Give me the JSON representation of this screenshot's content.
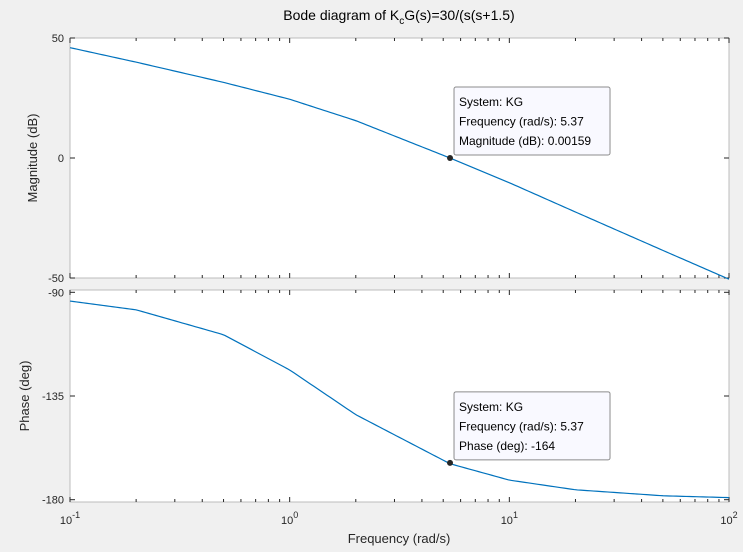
{
  "figure": {
    "title_prefix": "Bode diagram of K",
    "title_sub": "c",
    "title_suffix": "G(s)=30/(s(s+1.5)",
    "xlabel": "Frequency  (rad/s)"
  },
  "chart_data": [
    {
      "type": "line",
      "id": "magnitude",
      "ylabel": "Magnitude (dB)",
      "xscale": "log",
      "xlim": [
        0.1,
        100
      ],
      "ylim": [
        -50,
        50
      ],
      "yticks": [
        50,
        0,
        -50
      ],
      "grid": false,
      "series": [
        {
          "color": "#0072bd",
          "x": [
            0.1,
            0.2,
            0.5,
            1,
            2,
            5.37,
            10,
            20,
            50,
            100
          ],
          "y": [
            45.98,
            39.94,
            31.51,
            24.48,
            15.56,
            0.00159,
            -10.3,
            -22.5,
            -38.5,
            -50.5
          ]
        }
      ],
      "datatip": {
        "x": 5.37,
        "y": 0.00159,
        "lines": [
          "System: KG",
          "Frequency (rad/s): 5.37",
          "Magnitude (dB): 0.00159"
        ]
      }
    },
    {
      "type": "line",
      "id": "phase",
      "ylabel": "Phase (deg)",
      "xscale": "log",
      "xlim": [
        0.1,
        100
      ],
      "ylim": [
        -181,
        -89
      ],
      "yticks": [
        -90,
        -135,
        -180
      ],
      "xticks": [
        {
          "value": 0.1,
          "base": "10",
          "exp": "-1"
        },
        {
          "value": 1,
          "base": "10",
          "exp": "0"
        },
        {
          "value": 10,
          "base": "10",
          "exp": "1"
        },
        {
          "value": 100,
          "base": "10",
          "exp": "2"
        }
      ],
      "grid": false,
      "series": [
        {
          "color": "#0072bd",
          "x": [
            0.1,
            0.2,
            0.5,
            1,
            2,
            5.37,
            10,
            20,
            50,
            100
          ],
          "y": [
            -93.8,
            -97.6,
            -108.4,
            -123.7,
            -143.1,
            -164.4,
            -171.5,
            -175.7,
            -178.3,
            -179.1
          ]
        }
      ],
      "datatip": {
        "x": 5.37,
        "y": -164,
        "lines": [
          "System: KG",
          "Frequency (rad/s): 5.37",
          "Phase (deg): -164"
        ]
      }
    }
  ]
}
